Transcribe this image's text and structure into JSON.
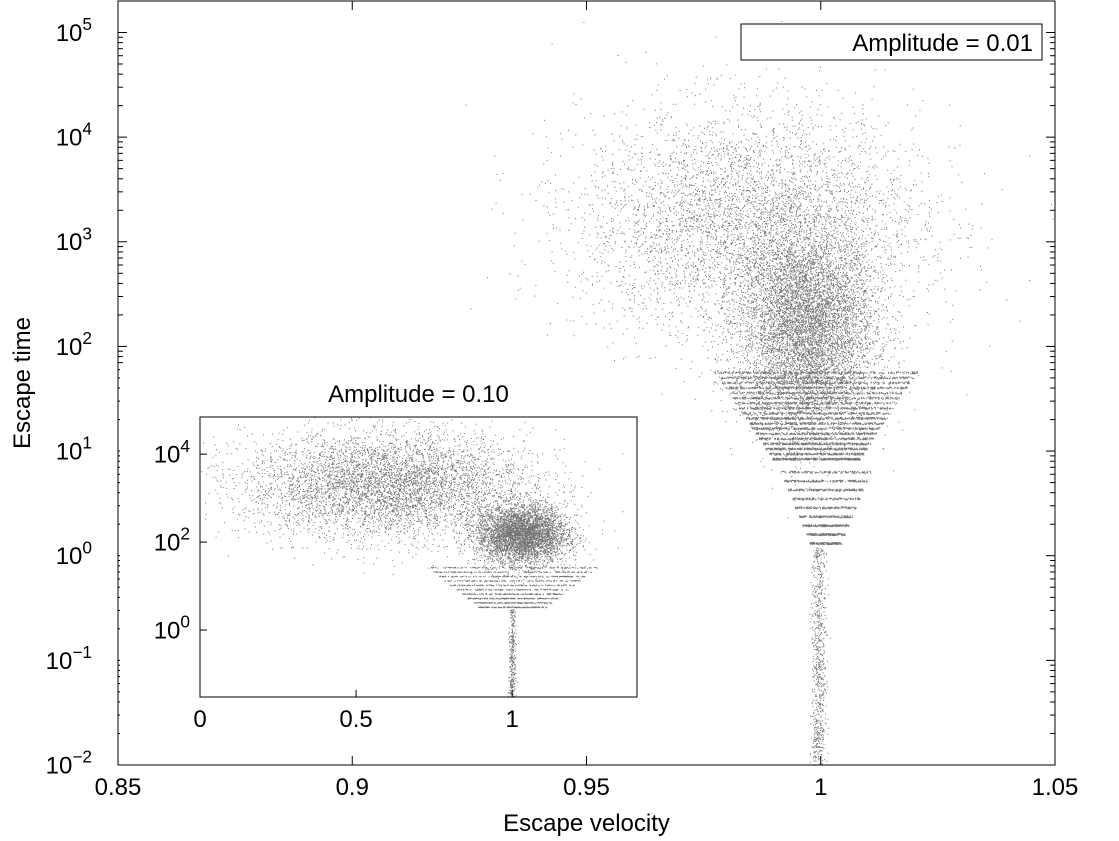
{
  "chart_data": [
    {
      "type": "scatter",
      "role": "main",
      "xlabel": "Escape velocity",
      "ylabel": "Escape time",
      "xlim": [
        0.85,
        1.05
      ],
      "ylim": [
        0.01,
        200000
      ],
      "yscale": "log",
      "x_ticks": [
        0.85,
        0.9,
        0.95,
        1,
        1.05
      ],
      "x_tick_labels": [
        "0.85",
        "0.9",
        "0.95",
        "1",
        "1.05"
      ],
      "y_ticks": [
        0.01,
        0.1,
        1,
        10,
        100,
        1000,
        10000,
        100000
      ],
      "y_tick_labels": [
        {
          "base": "10",
          "exp": "−2"
        },
        {
          "base": "10",
          "exp": "−1"
        },
        {
          "base": "10",
          "exp": "0"
        },
        {
          "base": "10",
          "exp": "1"
        },
        {
          "base": "10",
          "exp": "2"
        },
        {
          "base": "10",
          "exp": "3"
        },
        {
          "base": "10",
          "exp": "4"
        },
        {
          "base": "10",
          "exp": "5"
        }
      ],
      "legend": {
        "label": "Amplitude = 0.01",
        "position": "top-right"
      },
      "marker_color": "#000000",
      "series": [
        {
          "kind": "cloud",
          "x": 0.997,
          "y": 150,
          "spread_x": 0.012,
          "spread_y_decades": 0.75,
          "n": 9000
        },
        {
          "kind": "cloud",
          "x": 0.985,
          "y": 1500,
          "spread_x": 0.03,
          "spread_y_decades": 0.9,
          "n": 5000
        },
        {
          "kind": "bands",
          "x_center": 0.999,
          "y_from": 8,
          "y_to": 60,
          "half_width_at_top": 0.022,
          "half_width_at_bottom": 0.009,
          "band_count": 18,
          "n": 5500
        },
        {
          "kind": "bands",
          "x_center": 1.001,
          "y_from": 1.2,
          "y_to": 7,
          "half_width_at_top": 0.01,
          "half_width_at_bottom": 0.003,
          "band_count": 9,
          "n": 1500
        },
        {
          "kind": "stem",
          "x": 0.9995,
          "y_from": 0.01,
          "y_to": 1.2,
          "n": 700
        }
      ]
    },
    {
      "type": "scatter",
      "role": "inset",
      "title": "Amplitude = 0.10",
      "xlim": [
        0,
        1.4
      ],
      "ylim": [
        0.03,
        70000
      ],
      "yscale": "log",
      "x_ticks": [
        0,
        0.5,
        1
      ],
      "x_tick_labels": [
        "0",
        "0.5",
        "1"
      ],
      "y_ticks": [
        1,
        100,
        10000
      ],
      "y_tick_labels": [
        {
          "base": "10",
          "exp": "0"
        },
        {
          "base": "10",
          "exp": "2"
        },
        {
          "base": "10",
          "exp": "4"
        }
      ],
      "marker_color": "#000000",
      "series": [
        {
          "kind": "cloud",
          "x": 0.6,
          "y": 2000,
          "spread_x": 0.38,
          "spread_y_decades": 1.0,
          "n": 7000
        },
        {
          "kind": "cloud",
          "x": 1.03,
          "y": 150,
          "spread_x": 0.12,
          "spread_y_decades": 0.55,
          "n": 4500
        },
        {
          "kind": "bands",
          "x_center": 1.0,
          "y_from": 3,
          "y_to": 30,
          "half_width_at_top": 0.28,
          "half_width_at_bottom": 0.1,
          "band_count": 10,
          "n": 1500
        },
        {
          "kind": "stem",
          "x": 1.0,
          "y_from": 0.03,
          "y_to": 3,
          "n": 300
        }
      ]
    }
  ]
}
